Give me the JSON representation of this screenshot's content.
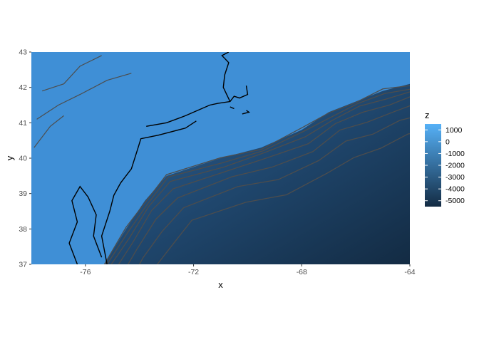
{
  "chart_data": {
    "type": "heatmap",
    "title": "",
    "xlabel": "x",
    "ylabel": "y",
    "xlim": [
      -78,
      -64
    ],
    "ylim": [
      37,
      43
    ],
    "x_ticks": [
      -76,
      -72,
      -68,
      -64
    ],
    "x_tick_labels": [
      "-76",
      "-72",
      "-68",
      "-64"
    ],
    "y_ticks": [
      37,
      38,
      39,
      40,
      41,
      42,
      43
    ],
    "y_tick_labels": [
      "37",
      "38",
      "39",
      "40",
      "41",
      "42",
      "43"
    ],
    "grid": false,
    "legend": {
      "title": "z",
      "position": "right",
      "breaks": [
        1000,
        0,
        -1000,
        -2000,
        -3000,
        -4000,
        -5000
      ],
      "labels": [
        "1000",
        "0",
        "-1000",
        "-2000",
        "-3000",
        "-4000",
        "-5000"
      ],
      "range": [
        -5500,
        1500
      ],
      "color_low": "#132B43",
      "color_high": "#56B1F7"
    },
    "shelf_edge": [
      [
        -75.3,
        37
      ],
      [
        -74.5,
        38
      ],
      [
        -73.8,
        38.8
      ],
      [
        -73,
        39.5
      ],
      [
        -71,
        40
      ],
      [
        -69.5,
        40.3
      ],
      [
        -68,
        40.8
      ],
      [
        -67,
        41.3
      ],
      [
        -66,
        41.6
      ],
      [
        -65,
        41.9
      ],
      [
        -64,
        42.1
      ]
    ],
    "contour_color": "#4d4d4d",
    "coastline_color": "#000000"
  }
}
